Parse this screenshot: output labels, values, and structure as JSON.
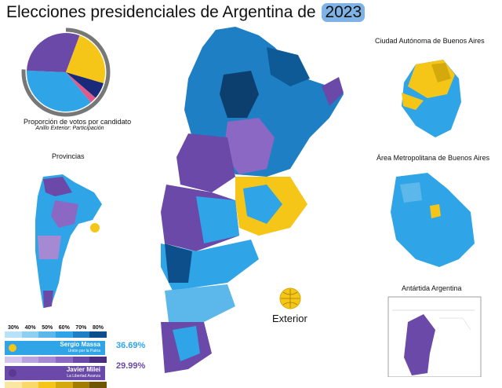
{
  "title_text": "Elecciones presidenciales de Argentina de",
  "title_year": "2023",
  "pie": {
    "caption": "Proporción de votos por candidato",
    "subcaption": "Anillo Exterior: Participación",
    "slices": [
      {
        "color": "#2fa4e7",
        "value": 36.69
      },
      {
        "color": "#6a49a8",
        "value": 29.99
      },
      {
        "color": "#f5c518",
        "value": 23.83
      },
      {
        "color": "#1a2a7a",
        "value": 6.78
      },
      {
        "color": "#e05a8a",
        "value": 2.7
      }
    ]
  },
  "labels": {
    "provincias": "Provincias",
    "caba": "Ciudad Autónoma de Buenos Aires",
    "amba": "Área Metropolitana de Buenos Aires",
    "antartida": "Antártida Argentina",
    "exterior": "Exterior"
  },
  "legend": {
    "scale": [
      "30%",
      "40%",
      "50%",
      "60%",
      "70%",
      "80%"
    ],
    "massa": {
      "name": "Sergio Massa",
      "party": "Unión por la Patria",
      "pct": "36.69%",
      "color": "#2fa4e7"
    },
    "milei": {
      "name": "Javier Milei",
      "party": "La Libertad Avanza",
      "pct": "29.99%",
      "color": "#6a49a8"
    }
  },
  "colors": {
    "massa_dark": "#0d4f8a",
    "massa": "#2fa4e7",
    "massa_light": "#8fd0f2",
    "milei": "#6a49a8",
    "milei_light": "#a58ad3",
    "bullrich": "#f5c518"
  }
}
